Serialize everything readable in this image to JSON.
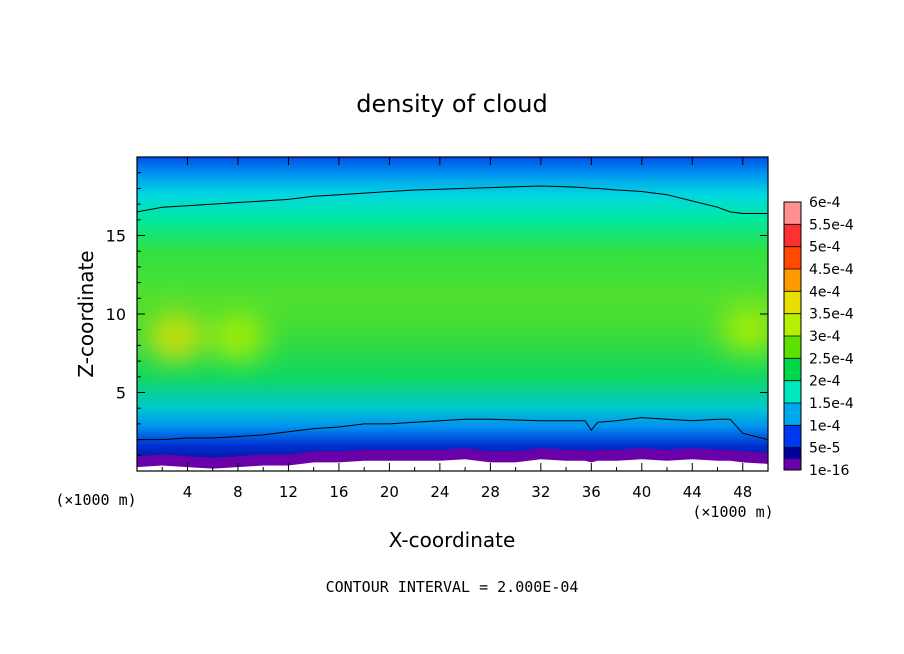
{
  "chart_data": {
    "type": "heatmap",
    "title": "density of cloud",
    "xlabel": "X-coordinate",
    "ylabel": "Z-coordinate",
    "x_unit_left": "(×1000 m)",
    "x_unit_right": "(×1000 m)",
    "xlim": [
      0,
      50
    ],
    "ylim": [
      0,
      20
    ],
    "x_ticks": [
      4,
      8,
      12,
      16,
      20,
      24,
      28,
      32,
      36,
      40,
      44,
      48
    ],
    "y_ticks": [
      5,
      10,
      15
    ],
    "footer": "CONTOUR INTERVAL = 2.000E-04",
    "colorbar": {
      "labels": [
        "6e-4",
        "5.5e-4",
        "5e-4",
        "4.5e-4",
        "4e-4",
        "3.5e-4",
        "3e-4",
        "2.5e-4",
        "2e-4",
        "1.5e-4",
        "1e-4",
        "5e-5",
        "1e-16"
      ],
      "colors": [
        "#ff9090",
        "#ff3030",
        "#ff4a00",
        "#ff9900",
        "#e8e000",
        "#b4f000",
        "#5ee000",
        "#00d84c",
        "#00e8c0",
        "#00a8f0",
        "#0038f0",
        "#00009a",
        "#6a00a8"
      ]
    },
    "profile_x": [
      0,
      2,
      4,
      6,
      8,
      10,
      12,
      14,
      16,
      18,
      20,
      22,
      24,
      26,
      28,
      30,
      32,
      34,
      35.5,
      36,
      36.5,
      38,
      40,
      42,
      44,
      46,
      47,
      48,
      50
    ],
    "contour_upper": [
      16.5,
      16.8,
      16.9,
      17.0,
      17.1,
      17.2,
      17.3,
      17.5,
      17.6,
      17.7,
      17.8,
      17.9,
      17.95,
      18.0,
      18.05,
      18.1,
      18.15,
      18.1,
      18.05,
      18.0,
      18.0,
      17.9,
      17.8,
      17.6,
      17.2,
      16.8,
      16.5,
      16.4,
      16.4
    ],
    "contour_lower": [
      2.0,
      2.0,
      2.1,
      2.1,
      2.2,
      2.3,
      2.5,
      2.7,
      2.8,
      3.0,
      3.0,
      3.1,
      3.2,
      3.3,
      3.3,
      3.25,
      3.2,
      3.2,
      3.2,
      2.6,
      3.1,
      3.2,
      3.4,
      3.3,
      3.2,
      3.3,
      3.3,
      2.4,
      2.0
    ],
    "ground_top": [
      0.6,
      0.7,
      0.6,
      0.5,
      0.6,
      0.7,
      0.7,
      0.9,
      0.9,
      1.0,
      1.0,
      1.0,
      1.0,
      1.1,
      0.9,
      0.9,
      1.1,
      1.0,
      1.0,
      0.9,
      1.0,
      1.0,
      1.1,
      1.0,
      1.1,
      1.0,
      1.0,
      0.9,
      0.8
    ],
    "bright_blobs": [
      {
        "x": 3,
        "z": 8.5,
        "level": "4e-4"
      },
      {
        "x": 8,
        "z": 8.5,
        "level": "3.5e-4"
      },
      {
        "x": 48.5,
        "z": 9,
        "level": "3.5e-4"
      }
    ]
  }
}
